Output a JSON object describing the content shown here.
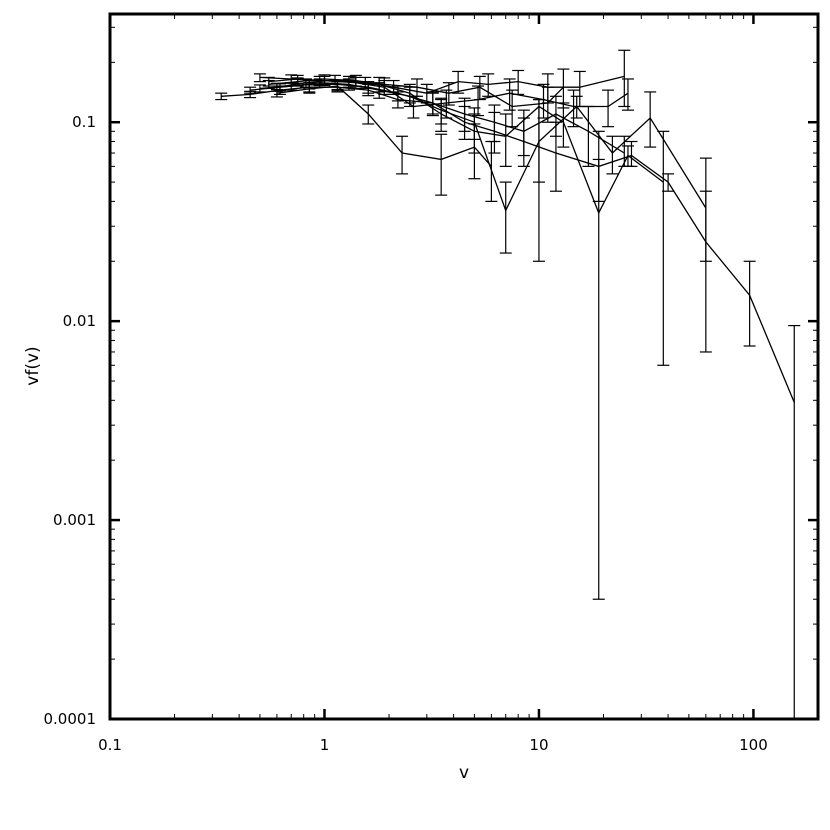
{
  "chart_data": {
    "type": "line",
    "title": "",
    "xlabel": "v",
    "ylabel": "vf(v)",
    "xscale": "log",
    "yscale": "log",
    "xlim": [
      0.1,
      200
    ],
    "ylim": [
      0.0001,
      0.35
    ],
    "grid": false,
    "error_bars": true,
    "xticks": [
      {
        "value": 0.1,
        "label": "0.1"
      },
      {
        "value": 1,
        "label": "1"
      },
      {
        "value": 10,
        "label": "10"
      },
      {
        "value": 100,
        "label": "100"
      }
    ],
    "yticks": [
      {
        "value": 0.0001,
        "label": "0.0001"
      },
      {
        "value": 0.001,
        "label": "0.001"
      },
      {
        "value": 0.01,
        "label": "0.01"
      },
      {
        "value": 0.1,
        "label": "0.1"
      }
    ],
    "series": [
      {
        "points": [
          [
            0.33,
            0.135,
            0.13,
            0.14
          ],
          [
            0.45,
            0.138,
            0.133,
            0.143
          ],
          [
            0.62,
            0.145,
            0.138,
            0.152
          ],
          [
            0.85,
            0.15,
            0.142,
            0.158
          ],
          [
            1.15,
            0.15,
            0.142,
            0.16
          ],
          [
            1.6,
            0.145,
            0.136,
            0.155
          ],
          [
            2.2,
            0.13,
            0.118,
            0.142
          ],
          [
            3.2,
            0.125,
            0.108,
            0.142
          ],
          [
            4.5,
            0.11,
            0.09,
            0.132
          ],
          [
            6.2,
            0.1,
            0.08,
            0.122
          ],
          [
            8.5,
            0.09,
            0.068,
            0.115
          ],
          [
            12.0,
            0.11,
            0.085,
            0.135
          ],
          [
            17.0,
            0.09,
            0.06,
            0.12
          ],
          [
            25.0,
            0.07,
            0.06,
            0.085
          ]
        ]
      },
      {
        "points": [
          [
            0.45,
            0.145,
            0.14,
            0.15
          ],
          [
            0.62,
            0.15,
            0.144,
            0.156
          ],
          [
            0.85,
            0.155,
            0.147,
            0.162
          ],
          [
            1.15,
            0.155,
            0.146,
            0.163
          ],
          [
            1.6,
            0.15,
            0.14,
            0.16
          ],
          [
            2.2,
            0.14,
            0.128,
            0.152
          ],
          [
            3.2,
            0.125,
            0.11,
            0.14
          ],
          [
            4.5,
            0.1,
            0.082,
            0.12
          ],
          [
            6.2,
            0.09,
            0.07,
            0.112
          ],
          [
            8.5,
            0.08,
            0.06,
            0.105
          ],
          [
            12.0,
            0.07,
            0.045,
            0.1
          ],
          [
            19.0,
            0.06,
            0.04,
            0.09
          ],
          [
            27.0,
            0.068,
            0.06,
            0.08
          ],
          [
            40.0,
            0.05,
            0.045,
            0.055
          ],
          [
            60.0,
            0.025,
            0.007,
            0.045
          ],
          [
            96.0,
            0.0135,
            0.0075,
            0.02
          ],
          [
            155.0,
            0.0039,
            0.0001,
            0.0095
          ]
        ]
      },
      {
        "points": [
          [
            0.5,
            0.148,
            0.142,
            0.154
          ],
          [
            0.7,
            0.152,
            0.145,
            0.158
          ],
          [
            0.95,
            0.158,
            0.15,
            0.165
          ],
          [
            1.3,
            0.155,
            0.145,
            0.165
          ],
          [
            1.8,
            0.145,
            0.132,
            0.158
          ],
          [
            2.5,
            0.135,
            0.12,
            0.15
          ],
          [
            3.5,
            0.115,
            0.098,
            0.132
          ],
          [
            5.0,
            0.1,
            0.082,
            0.118
          ],
          [
            7.0,
            0.036,
            0.022,
            0.05
          ],
          [
            10.0,
            0.08,
            0.02,
            0.13
          ],
          [
            15.0,
            0.12,
            0.105,
            0.135
          ],
          [
            22.0,
            0.07,
            0.055,
            0.085
          ],
          [
            33.0,
            0.105,
            0.075,
            0.142
          ],
          [
            60.0,
            0.037,
            0.02,
            0.066
          ]
        ]
      },
      {
        "points": [
          [
            0.5,
            0.168,
            0.16,
            0.175
          ],
          [
            0.7,
            0.165,
            0.157,
            0.173
          ],
          [
            0.95,
            0.162,
            0.153,
            0.17
          ],
          [
            1.3,
            0.16,
            0.15,
            0.17
          ],
          [
            1.8,
            0.155,
            0.142,
            0.168
          ],
          [
            2.5,
            0.14,
            0.125,
            0.155
          ],
          [
            3.5,
            0.11,
            0.09,
            0.13
          ],
          [
            5.0,
            0.09,
            0.07,
            0.11
          ],
          [
            7.0,
            0.085,
            0.06,
            0.11
          ],
          [
            10.0,
            0.12,
            0.05,
            0.13
          ],
          [
            13.0,
            0.1,
            0.075,
            0.125
          ],
          [
            19.0,
            0.035,
            0.0004,
            0.065
          ],
          [
            26.0,
            0.068,
            0.06,
            0.076
          ],
          [
            38.0,
            0.05,
            0.006,
            0.09
          ]
        ]
      },
      {
        "points": [
          [
            0.55,
            0.16,
            0.152,
            0.168
          ],
          [
            0.75,
            0.165,
            0.157,
            0.172
          ],
          [
            1.0,
            0.162,
            0.153,
            0.17
          ],
          [
            1.4,
            0.158,
            0.148,
            0.168
          ],
          [
            1.9,
            0.15,
            0.138,
            0.162
          ],
          [
            2.6,
            0.12,
            0.105,
            0.135
          ],
          [
            3.7,
            0.125,
            0.105,
            0.145
          ],
          [
            5.2,
            0.13,
            0.108,
            0.152
          ],
          [
            7.3,
            0.14,
            0.115,
            0.165
          ],
          [
            10.5,
            0.13,
            0.105,
            0.155
          ],
          [
            14.5,
            0.12,
            0.095,
            0.145
          ],
          [
            21.0,
            0.12,
            0.095,
            0.145
          ],
          [
            26.0,
            0.14,
            0.115,
            0.165
          ]
        ]
      },
      {
        "points": [
          [
            0.6,
            0.15,
            0.143,
            0.157
          ],
          [
            0.82,
            0.158,
            0.15,
            0.165
          ],
          [
            1.12,
            0.163,
            0.155,
            0.172
          ],
          [
            1.55,
            0.158,
            0.148,
            0.168
          ],
          [
            2.1,
            0.15,
            0.138,
            0.162
          ],
          [
            3.0,
            0.14,
            0.125,
            0.155
          ],
          [
            4.2,
            0.16,
            0.14,
            0.18
          ],
          [
            5.8,
            0.155,
            0.135,
            0.175
          ],
          [
            8.0,
            0.16,
            0.138,
            0.182
          ],
          [
            11.0,
            0.15,
            0.125,
            0.175
          ],
          [
            15.5,
            0.15,
            0.12,
            0.18
          ],
          [
            25.0,
            0.17,
            0.12,
            0.23
          ]
        ]
      },
      {
        "points": [
          [
            0.55,
            0.155,
            0.148,
            0.162
          ],
          [
            0.75,
            0.16,
            0.152,
            0.167
          ],
          [
            1.0,
            0.165,
            0.157,
            0.173
          ],
          [
            1.4,
            0.162,
            0.152,
            0.172
          ],
          [
            1.9,
            0.155,
            0.143,
            0.167
          ],
          [
            2.7,
            0.15,
            0.135,
            0.165
          ],
          [
            3.8,
            0.14,
            0.122,
            0.158
          ],
          [
            5.3,
            0.15,
            0.13,
            0.17
          ],
          [
            7.5,
            0.12,
            0.095,
            0.145
          ],
          [
            11.0,
            0.125,
            0.1,
            0.15
          ],
          [
            13.0,
            0.15,
            0.118,
            0.185
          ]
        ]
      },
      {
        "points": [
          [
            0.6,
            0.14,
            0.134,
            0.146
          ],
          [
            0.85,
            0.147,
            0.14,
            0.154
          ],
          [
            1.15,
            0.152,
            0.144,
            0.16
          ],
          [
            1.6,
            0.11,
            0.098,
            0.122
          ],
          [
            2.3,
            0.07,
            0.055,
            0.085
          ],
          [
            3.5,
            0.065,
            0.043,
            0.087
          ],
          [
            5.0,
            0.075,
            0.052,
            0.098
          ],
          [
            6.0,
            0.06,
            0.04,
            0.08
          ]
        ]
      }
    ]
  }
}
